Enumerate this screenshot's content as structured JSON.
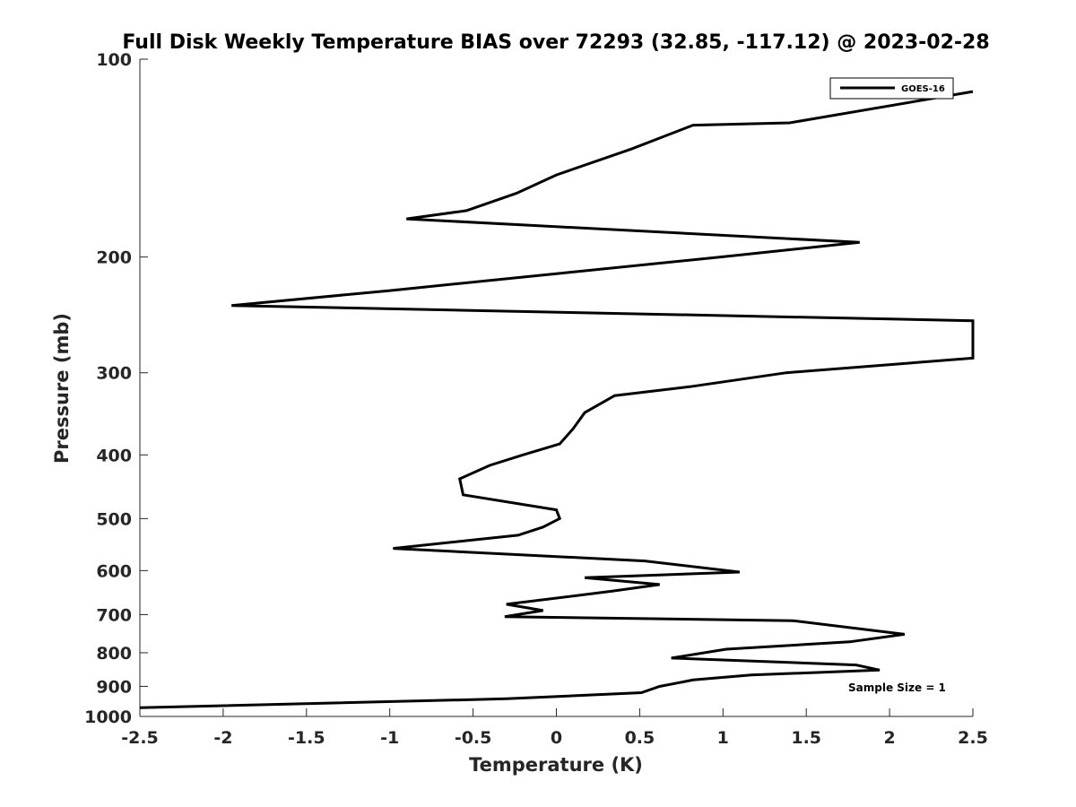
{
  "chart_data": {
    "type": "line",
    "title": "Full Disk Weekly Temperature BIAS over 72293 (32.85, -117.12) @ 2023-02-28",
    "xlabel": "Temperature (K)",
    "ylabel": "Pressure (mb)",
    "xlim": [
      -2.5,
      2.5
    ],
    "ylim": [
      1000,
      100
    ],
    "y_scale": "log",
    "x_ticks": [
      -2.5,
      -2,
      -1.5,
      -1,
      -0.5,
      0,
      0.5,
      1,
      1.5,
      2,
      2.5
    ],
    "x_tick_labels": [
      "-2.5",
      "-2",
      "-1.5",
      "-1",
      "-0.5",
      "0",
      "0.5",
      "1",
      "1.5",
      "2",
      "2.5"
    ],
    "y_ticks": [
      100,
      200,
      300,
      400,
      500,
      600,
      700,
      800,
      900,
      1000
    ],
    "y_tick_labels": [
      "100",
      "200",
      "300",
      "400",
      "500",
      "600",
      "700",
      "800",
      "900",
      "1000"
    ],
    "legend_position": "top-right",
    "annotation": "Sample Size = 1",
    "series": [
      {
        "name": "GOES-16",
        "color": "#000000",
        "points": [
          {
            "p": 112,
            "t": 2.5
          },
          {
            "p": 125,
            "t": 1.4
          },
          {
            "p": 126,
            "t": 0.82
          },
          {
            "p": 137,
            "t": 0.45
          },
          {
            "p": 150,
            "t": 0.0
          },
          {
            "p": 160,
            "t": -0.24
          },
          {
            "p": 170,
            "t": -0.54
          },
          {
            "p": 175,
            "t": -0.9
          },
          {
            "p": 190,
            "t": 1.82
          },
          {
            "p": 200,
            "t": 0.98
          },
          {
            "p": 212,
            "t": 0.0
          },
          {
            "p": 225,
            "t": -1.0
          },
          {
            "p": 237,
            "t": -1.95
          },
          {
            "p": 250,
            "t": 2.5
          },
          {
            "p": 285,
            "t": 2.5
          },
          {
            "p": 300,
            "t": 1.38
          },
          {
            "p": 315,
            "t": 0.8
          },
          {
            "p": 325,
            "t": 0.35
          },
          {
            "p": 345,
            "t": 0.17
          },
          {
            "p": 365,
            "t": 0.1
          },
          {
            "p": 385,
            "t": 0.02
          },
          {
            "p": 400,
            "t": -0.2
          },
          {
            "p": 415,
            "t": -0.4
          },
          {
            "p": 435,
            "t": -0.58
          },
          {
            "p": 460,
            "t": -0.56
          },
          {
            "p": 485,
            "t": 0.0
          },
          {
            "p": 500,
            "t": 0.02
          },
          {
            "p": 515,
            "t": -0.08
          },
          {
            "p": 530,
            "t": -0.23
          },
          {
            "p": 555,
            "t": -0.98
          },
          {
            "p": 580,
            "t": 0.53
          },
          {
            "p": 603,
            "t": 1.1
          },
          {
            "p": 615,
            "t": 0.17
          },
          {
            "p": 630,
            "t": 0.62
          },
          {
            "p": 645,
            "t": 0.33
          },
          {
            "p": 675,
            "t": -0.3
          },
          {
            "p": 690,
            "t": -0.08
          },
          {
            "p": 705,
            "t": -0.31
          },
          {
            "p": 715,
            "t": 1.42
          },
          {
            "p": 750,
            "t": 2.09
          },
          {
            "p": 770,
            "t": 1.76
          },
          {
            "p": 790,
            "t": 1.02
          },
          {
            "p": 815,
            "t": 0.69
          },
          {
            "p": 835,
            "t": 1.8
          },
          {
            "p": 850,
            "t": 1.94
          },
          {
            "p": 865,
            "t": 1.17
          },
          {
            "p": 880,
            "t": 0.82
          },
          {
            "p": 900,
            "t": 0.62
          },
          {
            "p": 920,
            "t": 0.51
          },
          {
            "p": 940,
            "t": -0.3
          },
          {
            "p": 970,
            "t": -2.5
          }
        ]
      }
    ]
  }
}
